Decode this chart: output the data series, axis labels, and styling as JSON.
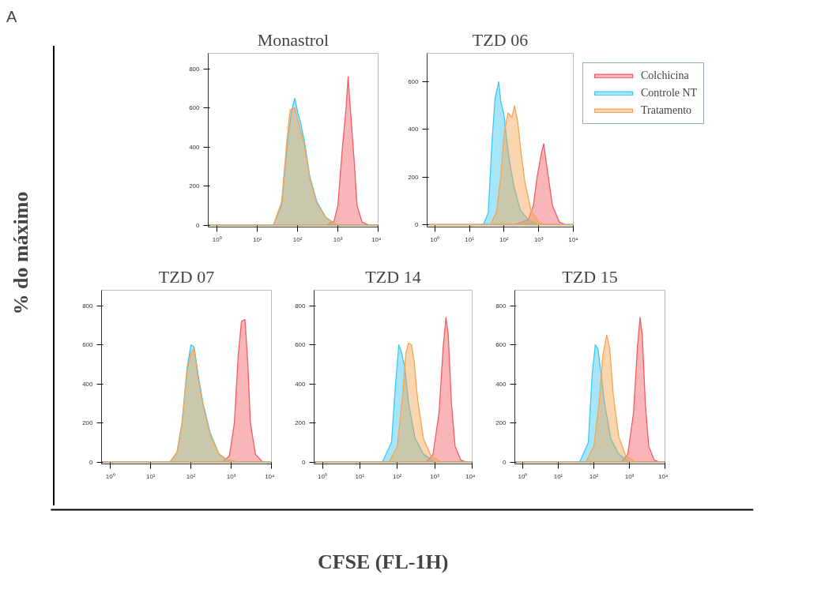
{
  "chart_data": [
    {
      "type": "other",
      "xlabel": "CFSE (FL-1H)",
      "ylabel": "% do máximo",
      "annotations": [
        "A"
      ]
    },
    {
      "type": "area",
      "title": "Monastrol",
      "log": "x",
      "xlim": [
        0.6,
        10000
      ],
      "ylim": [
        -10,
        880
      ],
      "xticks": [
        {
          "value": 1,
          "label": "10⁰"
        },
        {
          "value": 10,
          "label": "10¹"
        },
        {
          "value": 100,
          "label": "10²"
        },
        {
          "value": 1000,
          "label": "10³"
        },
        {
          "value": 10000,
          "label": "10⁴"
        }
      ],
      "yticks": [
        0,
        200,
        400,
        600,
        800
      ],
      "series": [
        {
          "color": "#f25c62",
          "x": [
            0.6,
            500,
            800,
            1000,
            1300,
            1600,
            1800,
            2000,
            2500,
            3000,
            4000,
            6000,
            10000
          ],
          "values": [
            0,
            0,
            20,
            100,
            400,
            600,
            760,
            620,
            350,
            100,
            15,
            0,
            0
          ]
        },
        {
          "color": "#3cc8f4",
          "x": [
            0.6,
            25,
            40,
            55,
            70,
            85,
            100,
            120,
            150,
            200,
            300,
            500,
            800,
            1000,
            10000
          ],
          "values": [
            0,
            0,
            100,
            400,
            580,
            650,
            580,
            520,
            420,
            250,
            120,
            40,
            10,
            0,
            0
          ]
        },
        {
          "color": "#f5a550",
          "x": [
            0.6,
            25,
            40,
            55,
            65,
            85,
            100,
            120,
            150,
            200,
            300,
            500,
            800,
            1000,
            10000
          ],
          "values": [
            0,
            0,
            120,
            450,
            590,
            600,
            540,
            480,
            400,
            240,
            110,
            40,
            10,
            0,
            0
          ]
        }
      ]
    },
    {
      "type": "area",
      "title": "TZD 06",
      "log": "x",
      "legend": "right",
      "xlim": [
        0.6,
        10000
      ],
      "ylim": [
        -10,
        720
      ],
      "xticks": [
        {
          "value": 1,
          "label": "10⁰"
        },
        {
          "value": 10,
          "label": "10¹"
        },
        {
          "value": 100,
          "label": "10²"
        },
        {
          "value": 1000,
          "label": "10³"
        },
        {
          "value": 10000,
          "label": "10⁴"
        }
      ],
      "yticks": [
        0,
        200,
        400,
        600
      ],
      "series": [
        {
          "name": "Colchicina",
          "color": "#f25c62",
          "x": [
            0.6,
            200,
            500,
            700,
            900,
            1200,
            1400,
            1700,
            2500,
            4000,
            6000,
            10000
          ],
          "values": [
            0,
            0,
            20,
            80,
            200,
            300,
            340,
            250,
            80,
            10,
            0,
            0
          ]
        },
        {
          "name": "Controle NT",
          "color": "#3cc8f4",
          "x": [
            0.6,
            25,
            35,
            45,
            55,
            70,
            80,
            100,
            120,
            150,
            200,
            300,
            500,
            1000,
            10000
          ],
          "values": [
            0,
            0,
            50,
            350,
            530,
            600,
            520,
            460,
            350,
            250,
            150,
            60,
            20,
            0,
            0
          ]
        },
        {
          "name": "Tratamento",
          "color": "#f5a550",
          "x": [
            0.6,
            40,
            60,
            80,
            100,
            130,
            170,
            200,
            250,
            300,
            400,
            600,
            1000,
            1500,
            10000
          ],
          "values": [
            0,
            0,
            50,
            200,
            380,
            470,
            450,
            500,
            430,
            320,
            180,
            60,
            10,
            0,
            0
          ]
        }
      ]
    },
    {
      "type": "area",
      "title": "TZD 07",
      "log": "x",
      "xlim": [
        0.6,
        10000
      ],
      "ylim": [
        -10,
        880
      ],
      "xticks": [
        {
          "value": 1,
          "label": "10⁰"
        },
        {
          "value": 10,
          "label": "10¹"
        },
        {
          "value": 100,
          "label": "10²"
        },
        {
          "value": 1000,
          "label": "10³"
        },
        {
          "value": 10000,
          "label": "10⁴"
        }
      ],
      "yticks": [
        0,
        200,
        400,
        600,
        800
      ],
      "series": [
        {
          "color": "#f25c62",
          "x": [
            0.6,
            600,
            900,
            1200,
            1500,
            1800,
            2200,
            2600,
            3000,
            4000,
            6000,
            10000
          ],
          "values": [
            0,
            0,
            30,
            200,
            550,
            720,
            730,
            500,
            200,
            40,
            0,
            0
          ]
        },
        {
          "color": "#3cc8f4",
          "x": [
            0.6,
            30,
            45,
            60,
            80,
            100,
            120,
            150,
            200,
            300,
            500,
            800,
            1500,
            10000
          ],
          "values": [
            0,
            0,
            50,
            200,
            480,
            600,
            590,
            450,
            300,
            150,
            40,
            10,
            0,
            0
          ]
        },
        {
          "color": "#f5a550",
          "x": [
            0.6,
            30,
            45,
            60,
            80,
            100,
            120,
            150,
            200,
            300,
            500,
            800,
            1500,
            10000
          ],
          "values": [
            0,
            0,
            50,
            200,
            460,
            560,
            580,
            430,
            290,
            140,
            40,
            10,
            0,
            0
          ]
        }
      ]
    },
    {
      "type": "area",
      "title": "TZD 14",
      "log": "x",
      "xlim": [
        0.6,
        10000
      ],
      "ylim": [
        -10,
        880
      ],
      "xticks": [
        {
          "value": 1,
          "label": "10⁰"
        },
        {
          "value": 10,
          "label": "10¹"
        },
        {
          "value": 100,
          "label": "10²"
        },
        {
          "value": 1000,
          "label": "10³"
        },
        {
          "value": 10000,
          "label": "10⁴"
        }
      ],
      "yticks": [
        0,
        200,
        400,
        600,
        800
      ],
      "series": [
        {
          "color": "#f25c62",
          "x": [
            0.6,
            600,
            900,
            1300,
            1700,
            2000,
            2300,
            2800,
            3500,
            5000,
            7000,
            10000
          ],
          "values": [
            0,
            0,
            40,
            250,
            600,
            740,
            650,
            300,
            80,
            10,
            0,
            0
          ]
        },
        {
          "color": "#3cc8f4",
          "x": [
            0.6,
            40,
            70,
            90,
            110,
            130,
            160,
            200,
            300,
            500,
            1000,
            10000
          ],
          "values": [
            0,
            0,
            100,
            400,
            600,
            560,
            480,
            300,
            120,
            40,
            0,
            0
          ]
        },
        {
          "color": "#f5a550",
          "x": [
            0.6,
            60,
            100,
            140,
            170,
            200,
            240,
            280,
            350,
            500,
            800,
            1500,
            10000
          ],
          "values": [
            0,
            0,
            80,
            350,
            560,
            610,
            600,
            520,
            320,
            120,
            30,
            0,
            0
          ]
        }
      ]
    },
    {
      "type": "area",
      "title": "TZD 15",
      "log": "x",
      "xlim": [
        0.6,
        10000
      ],
      "ylim": [
        -10,
        880
      ],
      "xticks": [
        {
          "value": 1,
          "label": "10⁰"
        },
        {
          "value": 10,
          "label": "10¹"
        },
        {
          "value": 100,
          "label": "10²"
        },
        {
          "value": 1000,
          "label": "10³"
        },
        {
          "value": 10000,
          "label": "10⁴"
        }
      ],
      "yticks": [
        0,
        200,
        400,
        600,
        800
      ],
      "series": [
        {
          "color": "#f25c62",
          "x": [
            0.6,
            600,
            900,
            1300,
            1700,
            2000,
            2300,
            2800,
            3500,
            5000,
            7000,
            10000
          ],
          "values": [
            0,
            0,
            40,
            250,
            600,
            740,
            650,
            300,
            80,
            10,
            0,
            0
          ]
        },
        {
          "color": "#3cc8f4",
          "x": [
            0.6,
            40,
            70,
            90,
            110,
            130,
            160,
            200,
            300,
            500,
            1000,
            10000
          ],
          "values": [
            0,
            0,
            100,
            450,
            600,
            580,
            450,
            300,
            120,
            40,
            0,
            0
          ]
        },
        {
          "color": "#f5a550",
          "x": [
            0.6,
            60,
            100,
            140,
            180,
            230,
            280,
            350,
            500,
            800,
            1500,
            10000
          ],
          "values": [
            0,
            0,
            80,
            300,
            550,
            650,
            580,
            350,
            130,
            30,
            0,
            0
          ]
        }
      ]
    }
  ]
}
